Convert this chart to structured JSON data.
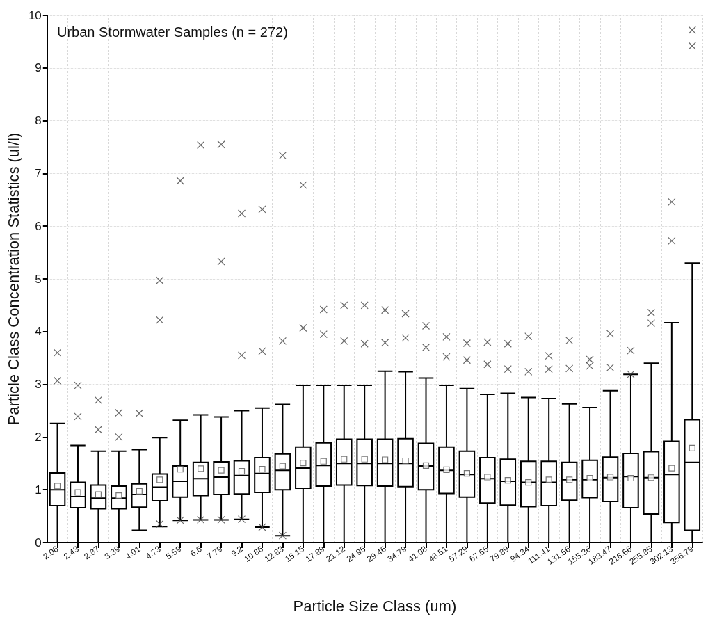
{
  "chart_data": {
    "type": "box",
    "xlabel": "Particle Size Class (um)",
    "ylabel": "Particle Class Concentration Statistics (ul/l)",
    "annotations": [
      "Urban Stormwater Samples (n = 272)"
    ],
    "categories": [
      "2.06",
      "2.43",
      "2.87",
      "3.39",
      "4.01",
      "4.73",
      "5.59",
      "6.6",
      "7.79",
      "9.2",
      "10.86",
      "12.83",
      "15.15",
      "17.89",
      "21.12",
      "24.95",
      "29.46",
      "34.79",
      "41.08",
      "48.51",
      "57.29",
      "67.65",
      "79.89",
      "94.34",
      "111.41",
      "131.56",
      "155.36",
      "183.47",
      "216.66",
      "255.85",
      "302.13",
      "356.79"
    ],
    "color": "#000000",
    "ylim": [
      0,
      10
    ],
    "yticks": [
      0,
      1,
      2,
      3,
      4,
      5,
      6,
      7,
      8,
      9,
      10
    ],
    "grid": true,
    "boxes": [
      {
        "low": 0,
        "q1": 0.7,
        "median": 1.0,
        "q3": 1.32,
        "high": 2.26,
        "mean": 1.07,
        "outliers": [
          3.07,
          3.6
        ]
      },
      {
        "low": 0,
        "q1": 0.66,
        "median": 0.87,
        "q3": 1.14,
        "high": 1.84,
        "mean": 0.95,
        "outliers": [
          2.39,
          2.98
        ]
      },
      {
        "low": 0,
        "q1": 0.64,
        "median": 0.84,
        "q3": 1.09,
        "high": 1.73,
        "mean": 0.91,
        "outliers": [
          2.14,
          2.7
        ]
      },
      {
        "low": 0,
        "q1": 0.64,
        "median": 0.84,
        "q3": 1.07,
        "high": 1.73,
        "mean": 0.89,
        "outliers": [
          2.0,
          2.46
        ]
      },
      {
        "low": 0.23,
        "q1": 0.67,
        "median": 0.91,
        "q3": 1.11,
        "high": 1.76,
        "mean": 0.97,
        "outliers": [
          2.45
        ]
      },
      {
        "low": 0.3,
        "q1": 0.79,
        "median": 1.05,
        "q3": 1.3,
        "high": 1.99,
        "mean": 1.19,
        "outliers": [
          0.35,
          4.22,
          4.97
        ]
      },
      {
        "low": 0.42,
        "q1": 0.86,
        "median": 1.16,
        "q3": 1.45,
        "high": 2.32,
        "mean": 1.39,
        "outliers": [
          0.42,
          6.86
        ]
      },
      {
        "low": 0.43,
        "q1": 0.89,
        "median": 1.21,
        "q3": 1.52,
        "high": 2.42,
        "mean": 1.4,
        "outliers": [
          0.43,
          7.54
        ]
      },
      {
        "low": 0.43,
        "q1": 0.91,
        "median": 1.24,
        "q3": 1.53,
        "high": 2.38,
        "mean": 1.37,
        "outliers": [
          0.43,
          5.33,
          7.55
        ]
      },
      {
        "low": 0.44,
        "q1": 0.92,
        "median": 1.27,
        "q3": 1.55,
        "high": 2.5,
        "mean": 1.35,
        "outliers": [
          0.44,
          3.55,
          6.24
        ]
      },
      {
        "low": 0.29,
        "q1": 0.95,
        "median": 1.31,
        "q3": 1.61,
        "high": 2.55,
        "mean": 1.39,
        "outliers": [
          0.29,
          3.63,
          6.32
        ]
      },
      {
        "low": 0.13,
        "q1": 1.0,
        "median": 1.37,
        "q3": 1.68,
        "high": 2.62,
        "mean": 1.45,
        "outliers": [
          0.13,
          3.82,
          7.34
        ]
      },
      {
        "low": 0,
        "q1": 1.03,
        "median": 1.41,
        "q3": 1.81,
        "high": 2.98,
        "mean": 1.51,
        "outliers": [
          4.07,
          6.78
        ]
      },
      {
        "low": 0,
        "q1": 1.07,
        "median": 1.46,
        "q3": 1.89,
        "high": 2.98,
        "mean": 1.54,
        "outliers": [
          3.95,
          4.42
        ]
      },
      {
        "low": 0,
        "q1": 1.09,
        "median": 1.5,
        "q3": 1.96,
        "high": 2.98,
        "mean": 1.58,
        "outliers": [
          3.82,
          4.5
        ]
      },
      {
        "low": 0,
        "q1": 1.08,
        "median": 1.5,
        "q3": 1.96,
        "high": 2.98,
        "mean": 1.58,
        "outliers": [
          3.77,
          4.5
        ]
      },
      {
        "low": 0,
        "q1": 1.07,
        "median": 1.5,
        "q3": 1.96,
        "high": 3.25,
        "mean": 1.57,
        "outliers": [
          3.79,
          4.41
        ]
      },
      {
        "low": 0,
        "q1": 1.06,
        "median": 1.5,
        "q3": 1.97,
        "high": 3.24,
        "mean": 1.55,
        "outliers": [
          3.88,
          4.34
        ]
      },
      {
        "low": 0,
        "q1": 1.0,
        "median": 1.45,
        "q3": 1.88,
        "high": 3.12,
        "mean": 1.46,
        "outliers": [
          3.7,
          4.11
        ]
      },
      {
        "low": 0,
        "q1": 0.93,
        "median": 1.37,
        "q3": 1.81,
        "high": 2.98,
        "mean": 1.38,
        "outliers": [
          3.52,
          3.9
        ]
      },
      {
        "low": 0,
        "q1": 0.86,
        "median": 1.29,
        "q3": 1.73,
        "high": 2.92,
        "mean": 1.31,
        "outliers": [
          3.46,
          3.78
        ]
      },
      {
        "low": 0,
        "q1": 0.75,
        "median": 1.21,
        "q3": 1.61,
        "high": 2.81,
        "mean": 1.24,
        "outliers": [
          3.38,
          3.8
        ]
      },
      {
        "low": 0,
        "q1": 0.71,
        "median": 1.16,
        "q3": 1.58,
        "high": 2.83,
        "mean": 1.18,
        "outliers": [
          3.29,
          3.77
        ]
      },
      {
        "low": 0,
        "q1": 0.68,
        "median": 1.14,
        "q3": 1.54,
        "high": 2.75,
        "mean": 1.14,
        "outliers": [
          3.24,
          3.91
        ]
      },
      {
        "low": 0,
        "q1": 0.7,
        "median": 1.14,
        "q3": 1.54,
        "high": 2.73,
        "mean": 1.19,
        "outliers": [
          3.29,
          3.54
        ]
      },
      {
        "low": 0,
        "q1": 0.8,
        "median": 1.19,
        "q3": 1.52,
        "high": 2.63,
        "mean": 1.19,
        "outliers": [
          3.3,
          3.83
        ]
      },
      {
        "low": 0,
        "q1": 0.85,
        "median": 1.19,
        "q3": 1.56,
        "high": 2.56,
        "mean": 1.22,
        "outliers": [
          3.35,
          3.47
        ]
      },
      {
        "low": 0,
        "q1": 0.78,
        "median": 1.23,
        "q3": 1.62,
        "high": 2.88,
        "mean": 1.24,
        "outliers": [
          3.32,
          3.96
        ]
      },
      {
        "low": 0,
        "q1": 0.66,
        "median": 1.25,
        "q3": 1.69,
        "high": 3.19,
        "mean": 1.22,
        "outliers": [
          3.19,
          3.64
        ]
      },
      {
        "low": 0,
        "q1": 0.54,
        "median": 1.23,
        "q3": 1.72,
        "high": 3.4,
        "mean": 1.23,
        "outliers": [
          4.16,
          4.36
        ]
      },
      {
        "low": 0,
        "q1": 0.38,
        "median": 1.29,
        "q3": 1.92,
        "high": 4.17,
        "mean": 1.41,
        "outliers": [
          5.72,
          6.46
        ]
      },
      {
        "low": 0,
        "q1": 0.23,
        "median": 1.52,
        "q3": 2.33,
        "high": 5.3,
        "mean": 1.79,
        "outliers": [
          9.42,
          9.72
        ]
      }
    ]
  }
}
